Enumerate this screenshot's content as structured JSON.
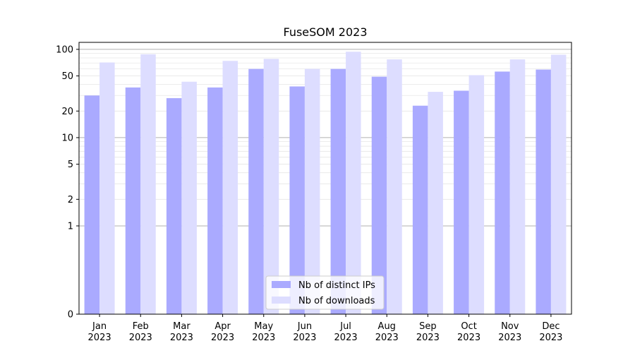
{
  "chart_data": {
    "type": "bar",
    "title": "FuseSOM 2023",
    "yscale": "symlog",
    "ylim": [
      0,
      120
    ],
    "yticks": [
      0,
      1,
      2,
      5,
      10,
      20,
      50,
      100
    ],
    "categories": [
      "Jan\n2023",
      "Feb\n2023",
      "Mar\n2023",
      "Apr\n2023",
      "May\n2023",
      "Jun\n2023",
      "Jul\n2023",
      "Aug\n2023",
      "Sep\n2023",
      "Oct\n2023",
      "Nov\n2023",
      "Dec\n2023"
    ],
    "series": [
      {
        "name": "Nb of distinct IPs",
        "color": "#aaaaff",
        "values": [
          30,
          37,
          28,
          37,
          60,
          38,
          60,
          49,
          23,
          34,
          56,
          59
        ]
      },
      {
        "name": "Nb of downloads",
        "color": "#ddddff",
        "values": [
          71,
          88,
          43,
          74,
          78,
          60,
          94,
          77,
          33,
          51,
          77,
          87
        ]
      }
    ],
    "legend_position": "bottom-center",
    "grid": "y"
  }
}
